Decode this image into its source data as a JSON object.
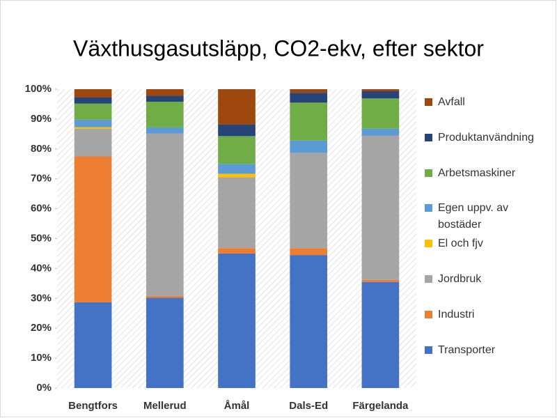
{
  "chart_data": {
    "type": "stacked_bar",
    "title": "Växthusgasutsläpp, CO2-ekv, efter sektor",
    "categories": [
      "Bengtfors",
      "Mellerud",
      "Åmål",
      "Dals-Ed",
      "Färgelanda"
    ],
    "series": [
      {
        "name": "Transporter",
        "color": "#4472c4",
        "values": [
          28.7,
          30.2,
          45.0,
          44.5,
          35.5
        ]
      },
      {
        "name": "Industri",
        "color": "#ed7d31",
        "values": [
          48.8,
          0.6,
          1.8,
          2.3,
          0.7
        ]
      },
      {
        "name": "Jordbruk",
        "color": "#a5a5a5",
        "values": [
          9.3,
          54.4,
          23.7,
          31.9,
          48.3
        ]
      },
      {
        "name": "El och fjv",
        "color": "#ffc000",
        "values": [
          0.5,
          0,
          1.2,
          0,
          0
        ]
      },
      {
        "name": "Egen uppv. av bostäder",
        "color": "#5b9bd5",
        "values": [
          2.5,
          2.0,
          3.3,
          4.1,
          2.3
        ]
      },
      {
        "name": "Arbetsmaskiner",
        "color": "#70ad47",
        "values": [
          5.4,
          8.6,
          9.3,
          12.7,
          10.1
        ]
      },
      {
        "name": "Produktanvändning",
        "color": "#264478",
        "values": [
          2.1,
          2.0,
          3.9,
          3.3,
          2.4
        ]
      },
      {
        "name": "Avfall",
        "color": "#9e480e",
        "values": [
          2.7,
          2.2,
          11.8,
          1.2,
          0.7
        ]
      }
    ],
    "ylim": [
      0,
      100
    ],
    "yticks": [
      {
        "value": 0,
        "label": "0%"
      },
      {
        "value": 10,
        "label": "10%"
      },
      {
        "value": 20,
        "label": "20%"
      },
      {
        "value": 30,
        "label": "30%"
      },
      {
        "value": 40,
        "label": "40%"
      },
      {
        "value": 50,
        "label": "50%"
      },
      {
        "value": 60,
        "label": "60%"
      },
      {
        "value": 70,
        "label": "70%"
      },
      {
        "value": 80,
        "label": "80%"
      },
      {
        "value": 90,
        "label": "90%"
      },
      {
        "value": 100,
        "label": "100%"
      }
    ],
    "legend": "right"
  }
}
